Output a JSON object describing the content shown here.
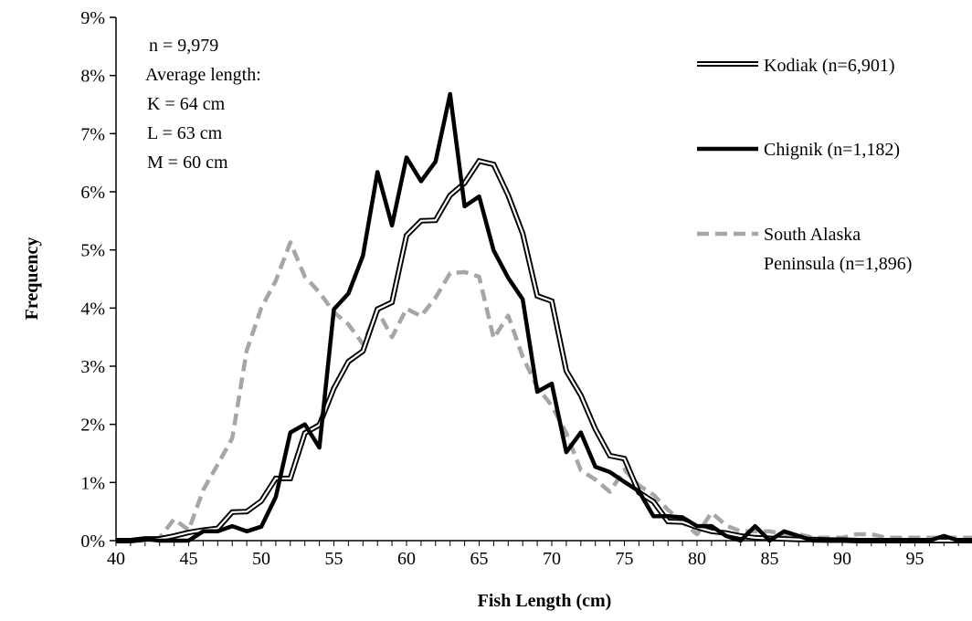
{
  "chart_data": {
    "type": "line",
    "xlabel": "Fish Length (cm)",
    "ylabel": "Frequency",
    "xlim": [
      40,
      99
    ],
    "ylim": [
      0,
      0.09
    ],
    "x_ticks": [
      40,
      45,
      50,
      55,
      60,
      65,
      70,
      75,
      80,
      85,
      90,
      95
    ],
    "y_ticks": [
      0,
      0.01,
      0.02,
      0.03,
      0.04,
      0.05,
      0.06,
      0.07,
      0.08,
      0.09
    ],
    "y_tick_labels": [
      "0%",
      "1%",
      "2%",
      "3%",
      "4%",
      "5%",
      "6%",
      "7%",
      "8%",
      "9%"
    ],
    "grid": false,
    "legend_position": "right",
    "annotation_lines": [
      "n = 9,979",
      "Average length:",
      "K = 64 cm",
      "L = 63 cm",
      "M = 60 cm"
    ],
    "x": [
      40,
      41,
      42,
      43,
      44,
      45,
      46,
      47,
      48,
      49,
      50,
      51,
      52,
      53,
      54,
      55,
      56,
      57,
      58,
      59,
      60,
      61,
      62,
      63,
      64,
      65,
      66,
      67,
      68,
      69,
      70,
      71,
      72,
      73,
      74,
      75,
      76,
      77,
      78,
      79,
      80,
      81,
      82,
      83,
      84,
      85,
      86,
      87,
      88,
      89,
      90,
      91,
      92,
      93,
      94,
      95,
      96,
      97,
      98,
      99
    ],
    "series": [
      {
        "name": "Kodiak (n=6,901)",
        "style": "double",
        "color": "#000000",
        "values": [
          0.0,
          0.0,
          0.0003,
          0.0003,
          0.0008,
          0.0014,
          0.0018,
          0.0021,
          0.0049,
          0.005,
          0.0068,
          0.0107,
          0.0107,
          0.0185,
          0.0199,
          0.0262,
          0.0308,
          0.0326,
          0.0398,
          0.041,
          0.0525,
          0.055,
          0.0551,
          0.0594,
          0.0615,
          0.0653,
          0.0647,
          0.0594,
          0.0528,
          0.0421,
          0.0412,
          0.0292,
          0.025,
          0.0192,
          0.0146,
          0.0141,
          0.0083,
          0.0067,
          0.0033,
          0.0032,
          0.0023,
          0.0016,
          0.0013,
          0.0008,
          0.0005,
          0.0004,
          0.0003,
          0.0002,
          0.0002,
          0.0001,
          0.0001,
          0.0,
          0.0,
          0.0,
          0.0,
          0.0,
          0.0,
          0.0,
          0.0,
          0.0
        ]
      },
      {
        "name": "Chignik (n=1,182)",
        "style": "solid",
        "color": "#000000",
        "values": [
          0.0,
          0.0,
          0.0003,
          0.0,
          0.0,
          0.0,
          0.0016,
          0.0016,
          0.0025,
          0.0016,
          0.0024,
          0.0075,
          0.0186,
          0.02,
          0.016,
          0.0398,
          0.0425,
          0.049,
          0.0634,
          0.0542,
          0.0659,
          0.0618,
          0.0652,
          0.0768,
          0.0575,
          0.0592,
          0.0499,
          0.0452,
          0.0415,
          0.0256,
          0.027,
          0.0152,
          0.0186,
          0.0127,
          0.0118,
          0.0101,
          0.0085,
          0.0042,
          0.0042,
          0.004,
          0.0025,
          0.0025,
          0.0008,
          0.0,
          0.0025,
          0.0,
          0.0016,
          0.0008,
          0.0,
          0.0,
          0.0,
          0.0,
          0.0,
          0.0,
          0.0,
          0.0,
          0.0,
          0.0008,
          0.0,
          0.0
        ]
      },
      {
        "name": "South Alaska Peninsula (n=1,896)",
        "style": "dashed",
        "color": "#a6a6a6",
        "values": [
          0.0,
          0.0,
          0.0,
          0.0005,
          0.0037,
          0.0018,
          0.0087,
          0.0131,
          0.0176,
          0.0327,
          0.04,
          0.0447,
          0.0513,
          0.0454,
          0.0427,
          0.0393,
          0.0372,
          0.0338,
          0.0396,
          0.035,
          0.0399,
          0.0386,
          0.0418,
          0.046,
          0.0462,
          0.0454,
          0.0348,
          0.0387,
          0.0316,
          0.0264,
          0.0232,
          0.0185,
          0.0121,
          0.0105,
          0.0084,
          0.0122,
          0.0095,
          0.0079,
          0.0053,
          0.0032,
          0.0011,
          0.0048,
          0.0026,
          0.0016,
          0.0016,
          0.0016,
          0.0011,
          0.0011,
          0.0005,
          0.0005,
          0.0005,
          0.0011,
          0.0011,
          0.0005,
          0.0005,
          0.0005,
          0.0005,
          0.0005,
          0.0005,
          0.0005
        ]
      }
    ]
  }
}
